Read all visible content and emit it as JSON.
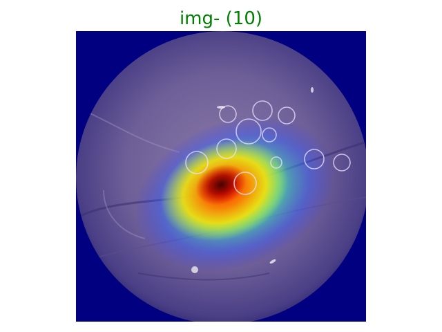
{
  "figure": {
    "title": "img- (10)",
    "title_color": "#008000",
    "background_color": "#ffffff",
    "image": {
      "description_icon": "endoscopy-heatmap-image",
      "frame_color": "#000080",
      "heatmap_colormap": [
        "#0000ff",
        "#00ffff",
        "#ffff00",
        "#ff0000"
      ]
    }
  }
}
